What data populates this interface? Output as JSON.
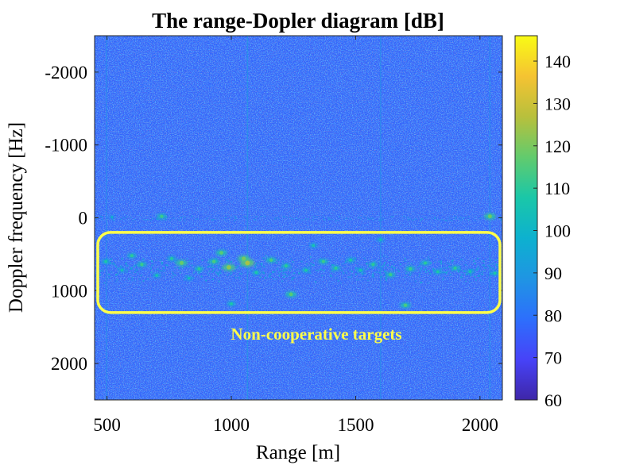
{
  "chart_data": {
    "type": "heatmap",
    "title": "The range-Dopler diagram [dB]",
    "xlabel": "Range [m]",
    "ylabel": "Doppler frequency [Hz]",
    "xlim": [
      450,
      2090
    ],
    "ylim": [
      -2500,
      2500
    ],
    "x_ticks": [
      500,
      1000,
      1500,
      2000
    ],
    "y_ticks": [
      -2000,
      -1000,
      0,
      1000,
      2000
    ],
    "y_tick_labels": [
      "-2000",
      "-1000",
      "0",
      "1000",
      "2000"
    ],
    "colorbar": {
      "range": [
        60,
        146
      ],
      "ticks": [
        60,
        70,
        80,
        90,
        100,
        110,
        120,
        130,
        140
      ],
      "colormap": "parula",
      "colors": [
        "#3e26a8",
        "#4743f8",
        "#2d6ffc",
        "#1f95e3",
        "#0db1cf",
        "#1ac7a8",
        "#62cb6d",
        "#b8c03c",
        "#f5c332",
        "#f9fb15"
      ]
    },
    "noise_floor_db": 77,
    "zero_doppler_line_hz": 0,
    "target_band_hz": [
      500,
      900
    ],
    "annotation": {
      "text": "Non-cooperative targets",
      "color": "#ffff4a",
      "box_x_range_m": [
        450,
        2090
      ],
      "box_y_range_hz": [
        200,
        1300
      ]
    },
    "targets": [
      {
        "range_m": 495,
        "doppler_hz": 600,
        "db": 108
      },
      {
        "range_m": 520,
        "doppler_hz": -10,
        "db": 100
      },
      {
        "range_m": 560,
        "doppler_hz": 720,
        "db": 104
      },
      {
        "range_m": 600,
        "doppler_hz": 520,
        "db": 110
      },
      {
        "range_m": 640,
        "doppler_hz": 640,
        "db": 112
      },
      {
        "range_m": 700,
        "doppler_hz": 790,
        "db": 106
      },
      {
        "range_m": 720,
        "doppler_hz": -20,
        "db": 112
      },
      {
        "range_m": 760,
        "doppler_hz": 560,
        "db": 109
      },
      {
        "range_m": 800,
        "doppler_hz": 620,
        "db": 118
      },
      {
        "range_m": 830,
        "doppler_hz": 830,
        "db": 104
      },
      {
        "range_m": 870,
        "doppler_hz": 700,
        "db": 110
      },
      {
        "range_m": 930,
        "doppler_hz": 600,
        "db": 114
      },
      {
        "range_m": 960,
        "doppler_hz": 480,
        "db": 116
      },
      {
        "range_m": 990,
        "doppler_hz": 680,
        "db": 122
      },
      {
        "range_m": 1000,
        "doppler_hz": 1180,
        "db": 108
      },
      {
        "range_m": 1050,
        "doppler_hz": 560,
        "db": 120
      },
      {
        "range_m": 1065,
        "doppler_hz": 620,
        "db": 125
      },
      {
        "range_m": 1100,
        "doppler_hz": 750,
        "db": 108
      },
      {
        "range_m": 1160,
        "doppler_hz": 580,
        "db": 114
      },
      {
        "range_m": 1220,
        "doppler_hz": 660,
        "db": 110
      },
      {
        "range_m": 1240,
        "doppler_hz": 1050,
        "db": 116
      },
      {
        "range_m": 1300,
        "doppler_hz": 720,
        "db": 108
      },
      {
        "range_m": 1330,
        "doppler_hz": 380,
        "db": 106
      },
      {
        "range_m": 1370,
        "doppler_hz": 600,
        "db": 112
      },
      {
        "range_m": 1420,
        "doppler_hz": 690,
        "db": 110
      },
      {
        "range_m": 1480,
        "doppler_hz": 580,
        "db": 108
      },
      {
        "range_m": 1520,
        "doppler_hz": 720,
        "db": 106
      },
      {
        "range_m": 1570,
        "doppler_hz": 640,
        "db": 110
      },
      {
        "range_m": 1600,
        "doppler_hz": 300,
        "db": 104
      },
      {
        "range_m": 1640,
        "doppler_hz": 780,
        "db": 112
      },
      {
        "range_m": 1700,
        "doppler_hz": 1200,
        "db": 114
      },
      {
        "range_m": 1720,
        "doppler_hz": 700,
        "db": 112
      },
      {
        "range_m": 1780,
        "doppler_hz": 620,
        "db": 110
      },
      {
        "range_m": 1830,
        "doppler_hz": 740,
        "db": 108
      },
      {
        "range_m": 1900,
        "doppler_hz": 690,
        "db": 110
      },
      {
        "range_m": 1960,
        "doppler_hz": 740,
        "db": 106
      },
      {
        "range_m": 2040,
        "doppler_hz": -20,
        "db": 118
      },
      {
        "range_m": 2060,
        "doppler_hz": 760,
        "db": 108
      }
    ]
  }
}
